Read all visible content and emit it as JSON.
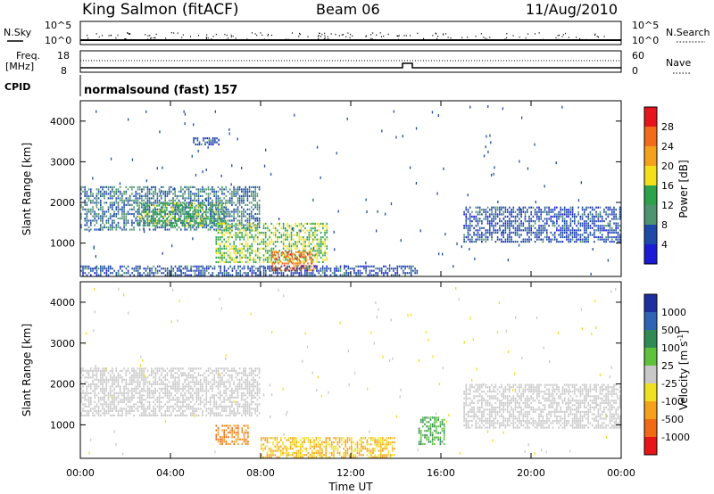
{
  "header": {
    "station": "King Salmon (fitACF)",
    "beam": "Beam 06",
    "date": "11/Aug/2010"
  },
  "status_panels": {
    "nsky_label": "N.Sky",
    "nsky_ticks": [
      "10^5",
      "10^0"
    ],
    "nsearch_label": "N.Search",
    "nsearch_ticks": [
      "10^5",
      "10^0"
    ],
    "freq_label": "Freq.",
    "freq_unit": "[MHz]",
    "freq_ticks": [
      "18",
      "8"
    ],
    "nave_label": "Nave",
    "nave_ticks": [
      "60",
      "0"
    ],
    "cpid_label": "CPID",
    "cpid_text": "normalsound (fast) 157"
  },
  "axes": {
    "ylabel": "Slant Range [km]",
    "yticks": [
      "4000",
      "3000",
      "2000",
      "1000"
    ],
    "xlabel": "Time UT",
    "xticks": [
      "00:00",
      "04:00",
      "08:00",
      "12:00",
      "16:00",
      "20:00",
      "00:00"
    ]
  },
  "colorbars": {
    "power": {
      "label": "Power [dB]",
      "ticks": [
        "28",
        "24",
        "20",
        "16",
        "12",
        "8",
        "4"
      ],
      "colors": [
        "#e8141c",
        "#f26a1a",
        "#f4a11c",
        "#f4e01a",
        "#2ca34a",
        "#4f9470",
        "#1d4aa8",
        "#1a1ad8"
      ]
    },
    "velocity": {
      "label": "Velocity [m s",
      "label_sup": "-1",
      "label_end": "]",
      "ticks": [
        "1000",
        "500",
        "100",
        "25",
        "-25",
        "-100",
        "-500",
        "-1000"
      ],
      "colors": [
        "#1b2f9e",
        "#2e64b4",
        "#2f8a56",
        "#5ec23a",
        "#c8c8c8",
        "#f0e020",
        "#f5a21a",
        "#f26a14",
        "#e81418"
      ]
    }
  },
  "chart_data": [
    {
      "type": "heatmap",
      "title": "Power",
      "xlabel": "Time UT",
      "ylabel": "Slant Range [km]",
      "xlim": [
        "00:00",
        "24:00"
      ],
      "ylim": [
        180,
        4500
      ],
      "colorbar_label": "Power [dB]",
      "colorbar_range": [
        0,
        32
      ],
      "regions": [
        {
          "t_start": 0.0,
          "t_end": 8.0,
          "r_low": 1300,
          "r_high": 2400,
          "value": 8
        },
        {
          "t_start": 2.5,
          "t_end": 6.5,
          "r_low": 1400,
          "r_high": 2000,
          "value": 14
        },
        {
          "t_start": 6.0,
          "t_end": 11.0,
          "r_low": 500,
          "r_high": 1500,
          "value": 16
        },
        {
          "t_start": 8.5,
          "t_end": 10.5,
          "r_low": 300,
          "r_high": 800,
          "value": 26
        },
        {
          "t_start": 0.0,
          "t_end": 15.0,
          "r_low": 180,
          "r_high": 450,
          "value": 6
        },
        {
          "t_start": 17.0,
          "t_end": 24.0,
          "r_low": 1000,
          "r_high": 1900,
          "value": 6
        },
        {
          "t_start": 5.0,
          "t_end": 6.2,
          "r_low": 3400,
          "r_high": 3600,
          "value": 6
        }
      ]
    },
    {
      "type": "heatmap",
      "title": "Velocity",
      "xlabel": "Time UT",
      "ylabel": "Slant Range [km]",
      "xlim": [
        "00:00",
        "24:00"
      ],
      "ylim": [
        180,
        4500
      ],
      "colorbar_label": "Velocity [m s-1]",
      "colorbar_levels": [
        1000,
        500,
        100,
        25,
        -25,
        -100,
        -500,
        -1000
      ],
      "regions": [
        {
          "t_start": 0.0,
          "t_end": 8.0,
          "r_low": 1200,
          "r_high": 2400,
          "value": 0
        },
        {
          "t_start": 6.0,
          "t_end": 7.5,
          "r_low": 500,
          "r_high": 1000,
          "value": -500
        },
        {
          "t_start": 8.0,
          "t_end": 14.0,
          "r_low": 180,
          "r_high": 700,
          "value": -100
        },
        {
          "t_start": 15.0,
          "t_end": 16.2,
          "r_low": 500,
          "r_high": 1200,
          "value": 100
        },
        {
          "t_start": 17.0,
          "t_end": 24.0,
          "r_low": 900,
          "r_high": 2000,
          "value": 0
        }
      ]
    }
  ]
}
